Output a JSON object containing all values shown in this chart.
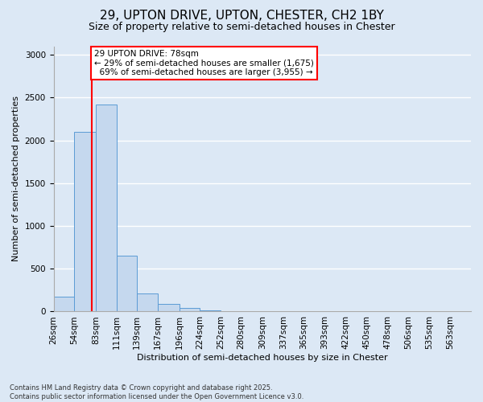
{
  "title1": "29, UPTON DRIVE, UPTON, CHESTER, CH2 1BY",
  "title2": "Size of property relative to semi-detached houses in Chester",
  "xlabel": "Distribution of semi-detached houses by size in Chester",
  "ylabel": "Number of semi-detached properties",
  "bar_color": "#c5d8ee",
  "bar_edge_color": "#5b9bd5",
  "background_color": "#dce8f5",
  "grid_color": "#ffffff",
  "property_size": 78,
  "property_label": "29 UPTON DRIVE: 78sqm",
  "pct_smaller": 29,
  "pct_larger": 69,
  "n_smaller": 1675,
  "n_larger": 3955,
  "red_line_color": "#ff0000",
  "bins": [
    26,
    54,
    83,
    111,
    139,
    167,
    196,
    224,
    252,
    280,
    309,
    337,
    365,
    393,
    422,
    450,
    478,
    506,
    535,
    563,
    591
  ],
  "counts": [
    175,
    2100,
    2420,
    650,
    215,
    90,
    40,
    15,
    8,
    4,
    2,
    1,
    1,
    0,
    1,
    0,
    0,
    0,
    0,
    0
  ],
  "ylim": [
    0,
    3100
  ],
  "yticks": [
    0,
    500,
    1000,
    1500,
    2000,
    2500,
    3000
  ],
  "footnote": "Contains HM Land Registry data © Crown copyright and database right 2025.\nContains public sector information licensed under the Open Government Licence v3.0.",
  "title1_fontsize": 11,
  "title2_fontsize": 9,
  "axis_fontsize": 8,
  "tick_fontsize": 7.5,
  "annot_fontsize": 7.5
}
